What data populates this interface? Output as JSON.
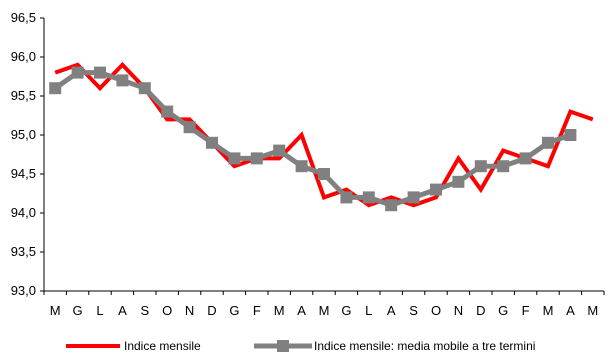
{
  "chart_data": {
    "type": "line",
    "title": "",
    "xlabel": "",
    "ylabel": "",
    "categories": [
      "M",
      "G",
      "L",
      "A",
      "S",
      "O",
      "N",
      "D",
      "G",
      "F",
      "M",
      "A",
      "M",
      "G",
      "L",
      "A",
      "S",
      "O",
      "N",
      "D",
      "G",
      "F",
      "M",
      "A",
      "M"
    ],
    "ylim": [
      93.0,
      96.5
    ],
    "yticks": [
      "93,0",
      "93,5",
      "94,0",
      "94,5",
      "95,0",
      "95,5",
      "96,0",
      "96,5"
    ],
    "grid": false,
    "legend_position": "bottom",
    "series": [
      {
        "name": "Indice mensile",
        "color": "#ff0000",
        "marker": "none",
        "values": [
          95.8,
          95.9,
          95.6,
          95.9,
          95.6,
          95.2,
          95.2,
          94.9,
          94.6,
          94.7,
          94.7,
          95.0,
          94.2,
          94.3,
          94.1,
          94.2,
          94.1,
          94.2,
          94.7,
          94.3,
          94.8,
          94.7,
          94.6,
          95.3,
          95.2
        ]
      },
      {
        "name": "Indice mensile: media mobile a tre termini",
        "color": "#808080",
        "marker": "square",
        "values": [
          95.6,
          95.8,
          95.8,
          95.7,
          95.6,
          95.3,
          95.1,
          94.9,
          94.7,
          94.7,
          94.8,
          94.6,
          94.5,
          94.2,
          94.2,
          94.1,
          94.2,
          94.3,
          94.4,
          94.6,
          94.6,
          94.7,
          94.9,
          95.0,
          null
        ]
      }
    ]
  }
}
